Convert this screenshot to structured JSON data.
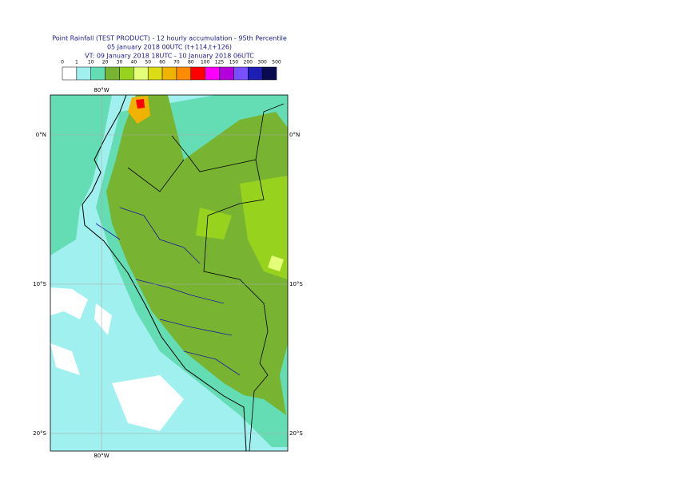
{
  "header": {
    "title": [
      "Point Rainfall (TEST PRODUCT) - 12 hourly accumulation - 95th Percentile",
      "05 January 2018 00UTC (t+114,t+126)",
      "VT: 09 January 2018 18UTC - 10 January 2018 06UTC"
    ]
  },
  "colorbar": {
    "labels": [
      "0",
      "1",
      "10",
      "20",
      "30",
      "40",
      "50",
      "60",
      "70",
      "80",
      "100",
      "125",
      "150",
      "200",
      "300",
      "500"
    ],
    "colors": [
      "#ffffff",
      "#a0f0f0",
      "#64dcb4",
      "#78b432",
      "#96d21e",
      "#e6ff78",
      "#dcdc14",
      "#f0b400",
      "#ff8c00",
      "#ff0000",
      "#ff00ff",
      "#b400dc",
      "#7850ff",
      "#1e1eb4",
      "#0a0a50"
    ]
  },
  "map": {
    "lon_labels": [
      "80°W",
      "80°W"
    ],
    "lat_labels": [
      "0°N",
      "0°N",
      "10°S",
      "10°S",
      "20°S",
      "20°S"
    ]
  }
}
